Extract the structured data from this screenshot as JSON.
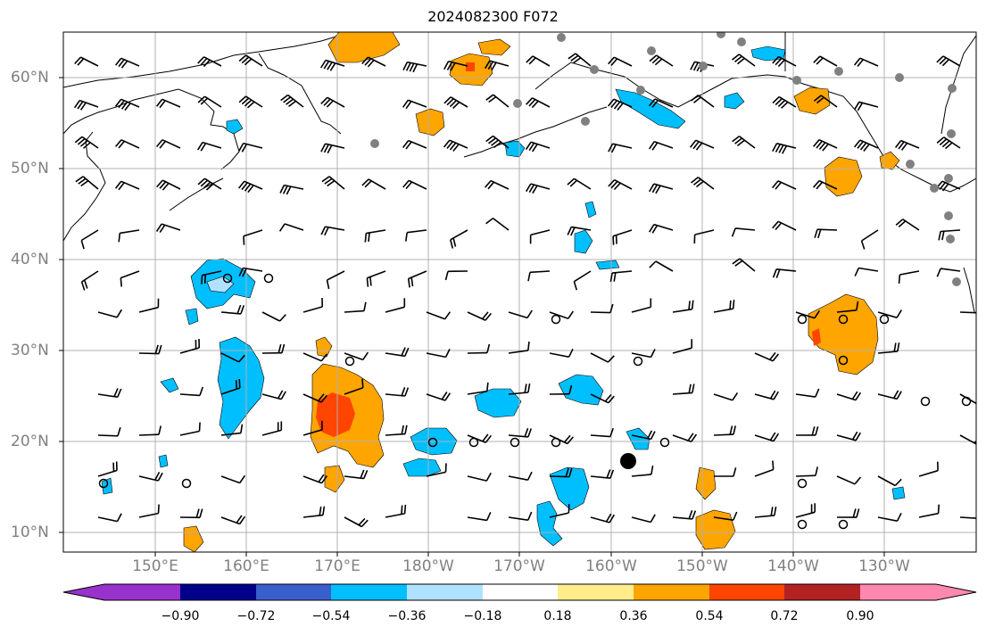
{
  "title": "2024082300 F072",
  "map": {
    "lat_labels": [
      "60°N",
      "50°N",
      "40°N",
      "30°N",
      "20°N",
      "10°N"
    ],
    "lon_labels": [
      "150°E",
      "160°E",
      "170°E",
      "180°W",
      "170°W",
      "160°W",
      "150°W",
      "140°W",
      "130°W"
    ]
  },
  "colorbar": {
    "ticks": [
      "−0.90",
      "−0.72",
      "−0.54",
      "−0.36",
      "−0.18",
      "0.18",
      "0.36",
      "0.54",
      "0.72",
      "0.90"
    ],
    "colors": [
      "#9932cc",
      "#00008b",
      "#3a5fcd",
      "#00bfff",
      "#b0e2ff",
      "#ffffff",
      "#ffec8b",
      "#ffa500",
      "#ff4500",
      "#b22222",
      "#ff88b0"
    ]
  },
  "palette": {
    "positive_light": "#ffa500",
    "positive_strong": "#ff4500",
    "negative_light": "#00bfff",
    "negative_pale": "#b0e2ff",
    "gridline": "#b0b0b0",
    "station_marker": "#808080"
  }
}
